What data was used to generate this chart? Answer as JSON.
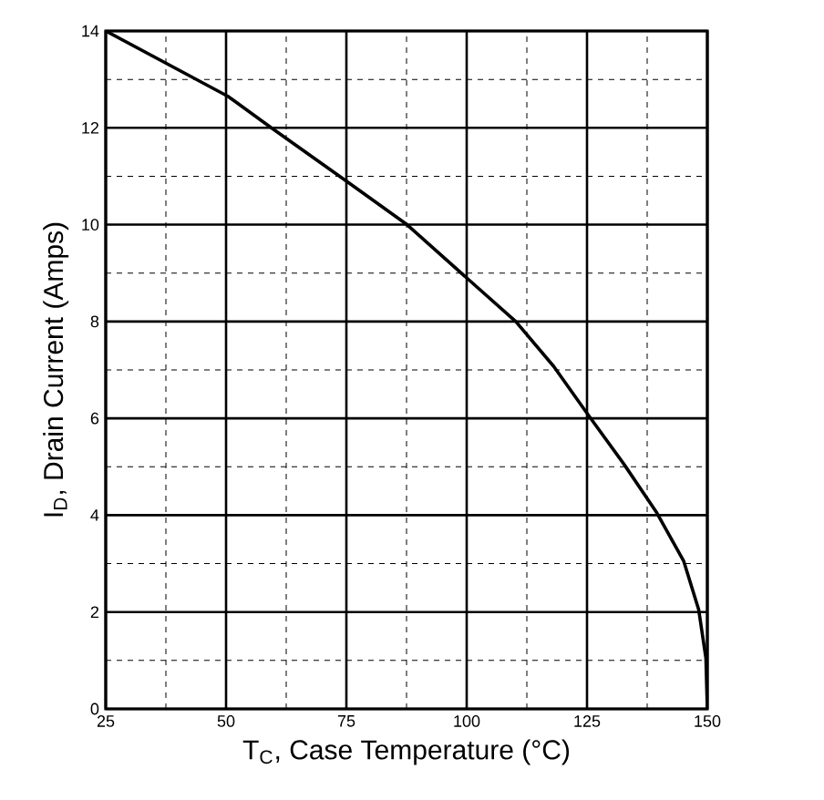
{
  "chart_data": {
    "type": "line",
    "xlabel": "T$_{C}$, Case Temperature (°C)",
    "ylabel": "I$_{D}$, Drain Current (Amps)",
    "x": [
      25,
      50.4,
      59.4,
      75,
      87.6,
      100,
      110.2,
      118.1,
      125.4,
      132.7,
      139.5,
      145.1,
      148.2,
      149.7,
      150
    ],
    "series": [
      {
        "color": "#000000",
        "values": [
          14,
          12.65,
          12,
          10.9,
          10,
          8.9,
          8,
          7.07,
          6.05,
          5.05,
          4.05,
          3.05,
          2.05,
          1.05,
          0
        ]
      }
    ],
    "xlim": [
      25,
      150
    ],
    "ylim": [
      0,
      14
    ],
    "xticks": [
      25,
      50,
      75,
      100,
      125,
      150
    ],
    "yticks": [
      0,
      2,
      4,
      6,
      8,
      10,
      12,
      14
    ],
    "grid": true,
    "marker": "none",
    "line_style": "solid"
  }
}
